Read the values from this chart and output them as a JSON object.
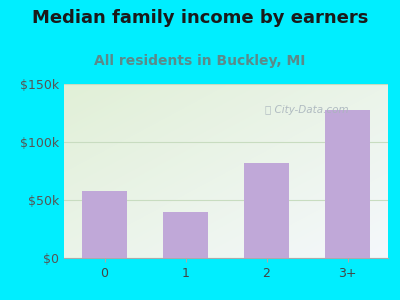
{
  "title": "Median family income by earners",
  "subtitle": "All residents in Buckley, MI",
  "categories": [
    "0",
    "1",
    "2",
    "3+"
  ],
  "values": [
    58000,
    40000,
    82000,
    128000
  ],
  "ylim": [
    0,
    150000
  ],
  "yticks": [
    0,
    50000,
    100000,
    150000
  ],
  "ytick_labels": [
    "$0",
    "$50k",
    "$100k",
    "$150k"
  ],
  "bar_color": "#c0a8d8",
  "background_outer": "#00eeff",
  "title_fontsize": 13,
  "title_color": "#1a1a1a",
  "subtitle_fontsize": 10,
  "subtitle_color": "#5a8a8a",
  "watermark_text": "City-Data.com",
  "watermark_color": "#aab5bd",
  "grid_color": "#d8e8d0",
  "spine_color": "#aaaaaa"
}
